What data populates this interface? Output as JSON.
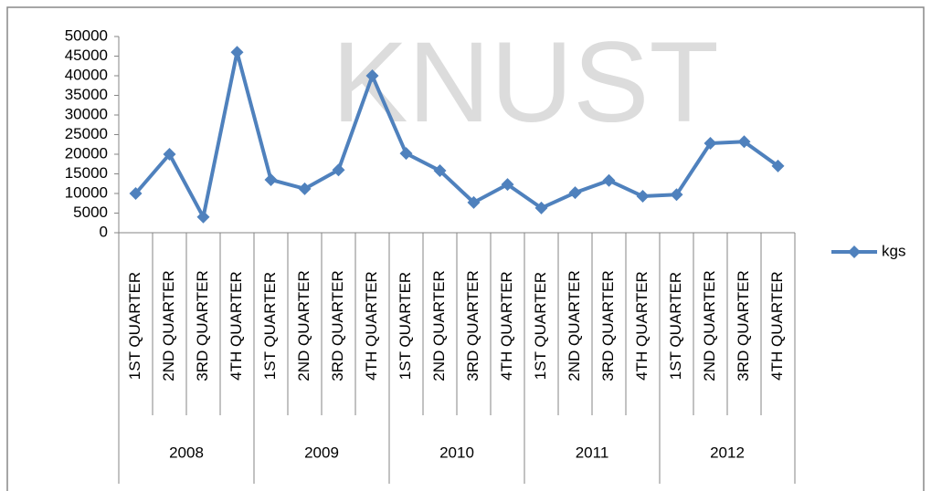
{
  "chart_data": {
    "type": "line",
    "watermark": "KNUST",
    "categories": [
      "1ST QUARTER",
      "2ND QUARTER",
      "3RD QUARTER",
      "4TH QUARTER",
      "1ST QUARTER",
      "2ND QUARTER",
      "3RD QUARTER",
      "4TH QUARTER",
      "1ST QUARTER",
      "2ND QUARTER",
      "3RD QUARTER",
      "4TH QUARTER",
      "1ST QUARTER",
      "2ND QUARTER",
      "3RD QUARTER",
      "4TH QUARTER",
      "1ST QUARTER",
      "2ND QUARTER",
      "3RD QUARTER",
      "4TH QUARTER"
    ],
    "category_groups": [
      "2008",
      "2009",
      "2010",
      "2011",
      "2012"
    ],
    "series": [
      {
        "name": "kgs",
        "color": "#4f81bd",
        "values": [
          10000,
          20000,
          4000,
          46000,
          13500,
          11200,
          16000,
          40000,
          20200,
          15800,
          7700,
          12300,
          6300,
          10200,
          13300,
          9300,
          9700,
          22800,
          23200,
          17000
        ]
      }
    ],
    "ylim": [
      0,
      50000
    ],
    "yticks": [
      0,
      5000,
      10000,
      15000,
      20000,
      25000,
      30000,
      35000,
      40000,
      45000,
      50000
    ],
    "legend": "right"
  }
}
